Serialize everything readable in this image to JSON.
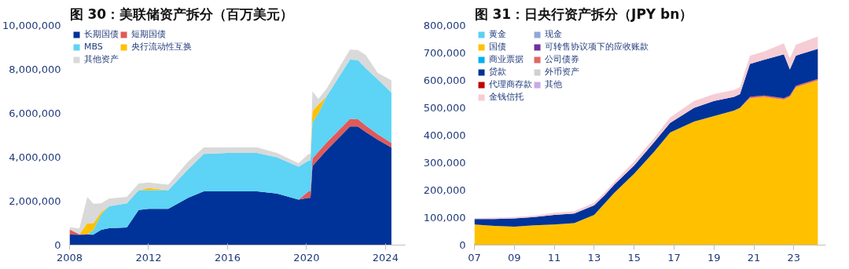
{
  "chart_data": [
    {
      "type": "area",
      "stacked": true,
      "title": "图 30：美联储资产拆分（百万美元）",
      "legend": "top left",
      "grid": false,
      "x": [
        2008.0,
        2008.5,
        2008.9,
        2009.2,
        2009.6,
        2010.0,
        2010.9,
        2011.5,
        2012.0,
        2013.0,
        2014.0,
        2014.8,
        2016.0,
        2017.5,
        2018.5,
        2019.6,
        2020.1,
        2020.2,
        2020.3,
        2020.6,
        2021.0,
        2022.2,
        2022.6,
        2023.0,
        2023.6,
        2024.3
      ],
      "xlim": [
        2008,
        2025
      ],
      "xticks": [
        2008,
        2012,
        2016,
        2020,
        2024
      ],
      "ylim": [
        0,
        10000000
      ],
      "yticks": [
        {
          "value": 0,
          "label": "0"
        },
        {
          "value": 2000000,
          "label": "2,000,000"
        },
        {
          "value": 4000000,
          "label": "4,000,000"
        },
        {
          "value": 6000000,
          "label": "6,000,000"
        },
        {
          "value": 8000000,
          "label": "8,000,000"
        },
        {
          "value": 10000000,
          "label": "10,000,000"
        }
      ],
      "series": [
        {
          "name": "长期国债",
          "color": "#003399",
          "values": [
            480000,
            470000,
            480000,
            470000,
            700000,
            770000,
            800000,
            1600000,
            1650000,
            1650000,
            2150000,
            2450000,
            2450000,
            2450000,
            2350000,
            2070000,
            2150000,
            2150000,
            3600000,
            3900000,
            4300000,
            5400000,
            5400000,
            5150000,
            4800000,
            4450000
          ]
        },
        {
          "name": "短期国债",
          "color": "#e05a5a",
          "values": [
            230000,
            20000,
            20000,
            10000,
            0,
            null,
            null,
            null,
            null,
            null,
            null,
            null,
            null,
            null,
            null,
            0,
            300000,
            300000,
            350000,
            350000,
            350000,
            350000,
            330000,
            300000,
            250000,
            200000
          ]
        },
        {
          "name": "MBS",
          "color": "#5dd3f5",
          "values": [
            0,
            0,
            0,
            200000,
            700000,
            1000000,
            1100000,
            900000,
            850000,
            850000,
            1300000,
            1700000,
            1750000,
            1750000,
            1650000,
            1500000,
            1400000,
            1400000,
            1650000,
            1750000,
            2100000,
            2700000,
            2700000,
            2600000,
            2500000,
            2300000
          ]
        },
        {
          "name": "央行流动性互换",
          "color": "#ffc000",
          "values": [
            null,
            0,
            500000,
            300000,
            100000,
            0,
            null,
            0,
            100000,
            0,
            null,
            null,
            null,
            null,
            null,
            null,
            null,
            0,
            500000,
            400000,
            0,
            null,
            null,
            null,
            null,
            null
          ]
        },
        {
          "name": "其他资产",
          "color": "#d9d9d9",
          "values": [
            100000,
            270000,
            1200000,
            900000,
            400000,
            350000,
            300000,
            300000,
            250000,
            250000,
            350000,
            300000,
            250000,
            250000,
            200000,
            150000,
            300000,
            300000,
            900000,
            250000,
            350000,
            450000,
            450000,
            600000,
            300000,
            550000
          ]
        }
      ]
    },
    {
      "type": "area",
      "stacked": true,
      "title": "图 31：日央行资产拆分（JPY bn）",
      "legend": "top left",
      "grid": false,
      "x": [
        2007.0,
        2008.0,
        2009.0,
        2010.0,
        2011.0,
        2012.0,
        2013.0,
        2013.5,
        2014.0,
        2015.0,
        2016.0,
        2016.8,
        2018.0,
        2019.0,
        2020.0,
        2020.3,
        2020.8,
        2021.5,
        2022.5,
        2022.8,
        2023.1,
        2024.2
      ],
      "xlim": [
        2007,
        2024.6
      ],
      "xticks": [
        {
          "value": 2007,
          "label": "07"
        },
        {
          "value": 2009,
          "label": "09"
        },
        {
          "value": 2011,
          "label": "11"
        },
        {
          "value": 2013,
          "label": "13"
        },
        {
          "value": 2015,
          "label": "15"
        },
        {
          "value": 2017,
          "label": "17"
        },
        {
          "value": 2019,
          "label": "19"
        },
        {
          "value": 2021,
          "label": "21"
        },
        {
          "value": 2023,
          "label": "23"
        }
      ],
      "ylim": [
        0,
        800000
      ],
      "yticks": [
        {
          "value": 0,
          "label": "0"
        },
        {
          "value": 100000,
          "label": "100,000"
        },
        {
          "value": 200000,
          "label": "200,000"
        },
        {
          "value": 300000,
          "label": "300,000"
        },
        {
          "value": 400000,
          "label": "400,000"
        },
        {
          "value": 500000,
          "label": "500,000"
        },
        {
          "value": 600000,
          "label": "600,000"
        },
        {
          "value": 700000,
          "label": "700,000"
        },
        {
          "value": 800000,
          "label": "800,000"
        }
      ],
      "series": [
        {
          "name": "黄金",
          "color": "#5bd0f0",
          "values": [
            null,
            null,
            null,
            null,
            null,
            null,
            null,
            null,
            null,
            null,
            null,
            null,
            null,
            null,
            null,
            null,
            null,
            null,
            null,
            null,
            null,
            null
          ]
        },
        {
          "name": "现金",
          "color": "#8fa8d8",
          "values": [
            null,
            null,
            null,
            null,
            null,
            null,
            null,
            null,
            null,
            null,
            null,
            null,
            null,
            null,
            null,
            null,
            null,
            null,
            null,
            null,
            null,
            null
          ]
        },
        {
          "name": "国债",
          "color": "#ffc000",
          "values": [
            75000,
            70000,
            67000,
            72000,
            75000,
            80000,
            110000,
            150000,
            190000,
            260000,
            340000,
            410000,
            450000,
            470000,
            490000,
            500000,
            535000,
            540000,
            530000,
            540000,
            575000,
            600000
          ]
        },
        {
          "name": "可转售协议项下的应收账款",
          "color": "#7030a0",
          "values": [
            null,
            null,
            null,
            null,
            null,
            null,
            null,
            null,
            null,
            null,
            null,
            null,
            null,
            null,
            null,
            null,
            null,
            null,
            null,
            null,
            null,
            null
          ]
        },
        {
          "name": "商业票据",
          "color": "#00b0f0",
          "values": [
            null,
            null,
            null,
            null,
            null,
            null,
            null,
            null,
            null,
            null,
            null,
            null,
            null,
            null,
            null,
            null,
            null,
            null,
            null,
            null,
            null,
            null
          ]
        },
        {
          "name": "公司债券",
          "color": "#e06666",
          "values": [
            null,
            null,
            null,
            null,
            null,
            null,
            null,
            null,
            null,
            null,
            null,
            null,
            null,
            null,
            null,
            0,
            5000,
            5000,
            5000,
            5000,
            5000,
            5000
          ]
        },
        {
          "name": "贷款",
          "color": "#003399",
          "values": [
            20000,
            25000,
            30000,
            30000,
            35000,
            35000,
            35000,
            30000,
            30000,
            30000,
            35000,
            35000,
            50000,
            55000,
            50000,
            50000,
            120000,
            130000,
            160000,
            95000,
            110000,
            110000
          ]
        },
        {
          "name": "外币资产",
          "color": "#d0d0d0",
          "values": [
            null,
            null,
            null,
            null,
            null,
            null,
            null,
            null,
            null,
            null,
            null,
            null,
            null,
            null,
            null,
            null,
            null,
            null,
            null,
            null,
            null,
            null
          ]
        },
        {
          "name": "代理商存款",
          "color": "#c00000",
          "values": [
            null,
            null,
            null,
            null,
            null,
            null,
            null,
            null,
            null,
            null,
            null,
            null,
            null,
            null,
            null,
            null,
            null,
            null,
            null,
            null,
            null,
            null
          ]
        },
        {
          "name": "其他",
          "color": "#c9a9e6",
          "values": [
            null,
            null,
            null,
            null,
            null,
            null,
            null,
            null,
            null,
            null,
            null,
            null,
            null,
            null,
            null,
            null,
            null,
            null,
            null,
            null,
            null,
            null
          ]
        },
        {
          "name": "金钱信托",
          "color": "#f6cdd4",
          "values": [
            3000,
            5000,
            5000,
            5000,
            8000,
            8000,
            10000,
            10000,
            10000,
            15000,
            15000,
            20000,
            25000,
            25000,
            25000,
            25000,
            30000,
            30000,
            40000,
            40000,
            40000,
            45000
          ]
        }
      ]
    }
  ]
}
